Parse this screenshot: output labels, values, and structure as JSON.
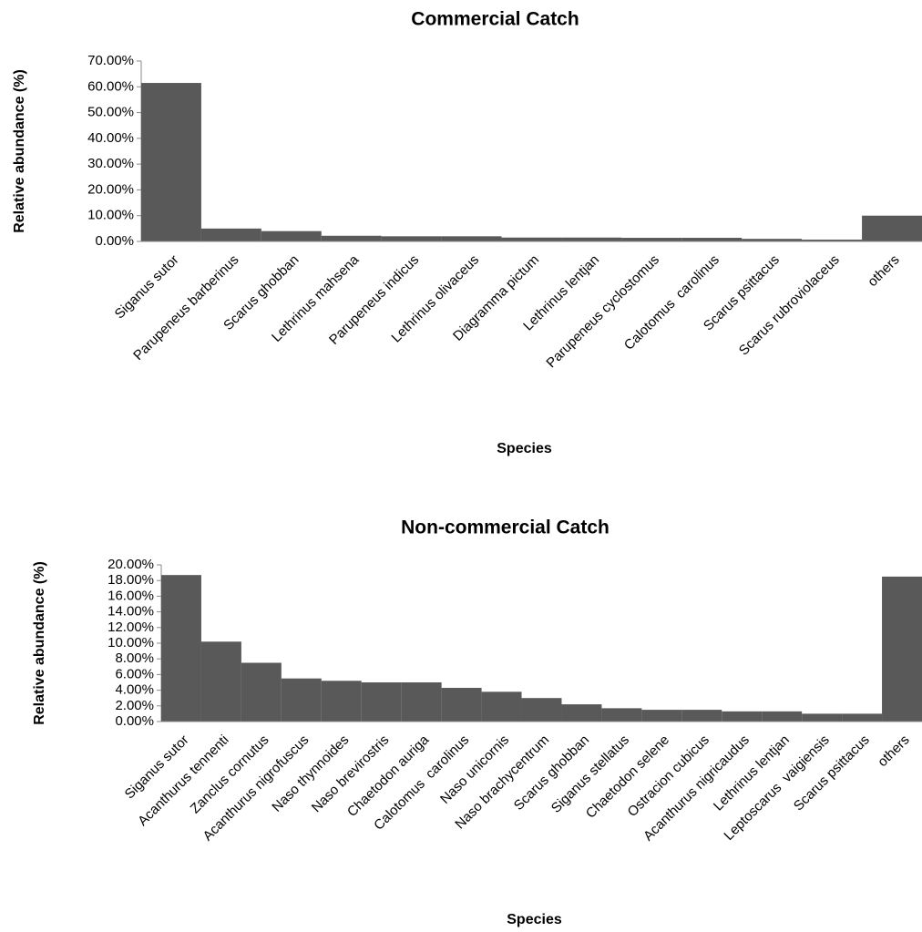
{
  "chart_data": [
    {
      "type": "bar",
      "title": "Commercial Catch",
      "x_label": "Species",
      "y_label": "Relative abundance (%)",
      "color": "#595959",
      "categories": [
        "Siganus sutor",
        "Parupeneus barberinus",
        "Scarus ghobban",
        "Lethrinus mahsena",
        "Parupeneus indicus",
        "Lethrinus olivaceus",
        "Diagramma pictum",
        "Lethrinus lentjan",
        "Parupeneus cyclostomus",
        "Calotomus  carolinus",
        "Scarus psittacus",
        "Scarus rubroviolaceus",
        "others"
      ],
      "values": [
        61.5,
        5,
        4,
        2.2,
        2,
        2,
        1.5,
        1.5,
        1.4,
        1.4,
        1,
        0.7,
        10
      ],
      "ylim": [
        0,
        70
      ],
      "yticks": [
        {
          "value": 0,
          "label": "0.00%"
        },
        {
          "value": 10,
          "label": "10.00%"
        },
        {
          "value": 20,
          "label": "20.00%"
        },
        {
          "value": 30,
          "label": "30.00%"
        },
        {
          "value": 40,
          "label": "40.00%"
        },
        {
          "value": 50,
          "label": "50.00%"
        },
        {
          "value": 60,
          "label": "60.00%"
        },
        {
          "value": 70,
          "label": "70.00%"
        }
      ]
    },
    {
      "type": "bar",
      "title": "Non-commercial Catch",
      "x_label": "Species",
      "y_label": "Relative abundance (%)",
      "color": "#595959",
      "categories": [
        "Siganus sutor",
        "Acanthurus tennenti",
        "Zanclus cornutus",
        "Acanthurus nigrofuscus",
        "Naso thynnoides",
        "Naso brevirostris",
        "Chaetodon auriga",
        "Calotomus  carolinus",
        "Naso unicornis",
        "Naso brachycentrum",
        "Scarus ghobban",
        "Siganus stellatus",
        "Chaetodon selene",
        "Ostracion cubicus",
        "Acanthurus nigricaudus",
        "Lethrinus lentjan",
        "Leptoscarus  vaigiensis",
        "Scarus psittacus",
        "others"
      ],
      "values": [
        18.7,
        10.2,
        7.5,
        5.5,
        5.2,
        5,
        5,
        4.3,
        3.8,
        3,
        2.2,
        1.7,
        1.5,
        1.5,
        1.3,
        1.3,
        1,
        1,
        18.5
      ],
      "ylim": [
        0,
        20
      ],
      "yticks": [
        {
          "value": 0,
          "label": "0.00%"
        },
        {
          "value": 2,
          "label": "2.00%"
        },
        {
          "value": 4,
          "label": "4.00%"
        },
        {
          "value": 6,
          "label": "6.00%"
        },
        {
          "value": 8,
          "label": "8.00%"
        },
        {
          "value": 10,
          "label": "10.00%"
        },
        {
          "value": 12,
          "label": "12.00%"
        },
        {
          "value": 14,
          "label": "14.00%"
        },
        {
          "value": 16,
          "label": "16.00%"
        },
        {
          "value": 18,
          "label": "18.00%"
        },
        {
          "value": 20,
          "label": "20.00%"
        }
      ]
    }
  ]
}
